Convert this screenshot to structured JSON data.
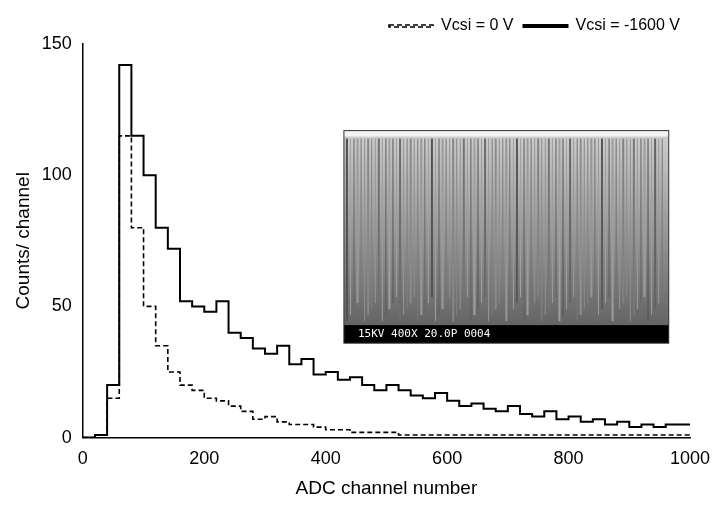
{
  "chart_data": {
    "type": "histogram",
    "x_label": "ADC channel number",
    "y_label": "Counts/ channel",
    "bins": [
      0,
      20,
      40,
      60,
      80,
      100,
      120,
      140,
      160,
      180,
      200,
      220,
      240,
      260,
      280,
      300,
      320,
      340,
      360,
      380,
      400,
      420,
      440,
      460,
      480,
      500,
      520,
      540,
      560,
      580,
      600,
      620,
      640,
      660,
      680,
      700,
      720,
      740,
      760,
      780,
      800,
      820,
      840,
      860,
      880,
      900,
      920,
      940,
      960,
      980,
      1000
    ],
    "series": [
      {
        "name": "Vcsi = 0 V",
        "color": "#000000",
        "line_style": "dashed",
        "values": [
          0,
          0,
          1,
          15,
          115,
          80,
          50,
          35,
          25,
          20,
          18,
          15,
          14,
          12,
          10,
          7,
          8,
          6,
          5,
          5,
          4,
          3,
          3,
          2,
          2,
          2,
          2,
          1,
          1,
          1,
          1,
          1,
          1,
          1,
          1,
          1,
          1,
          1,
          1,
          1,
          1,
          1,
          1,
          1,
          1,
          1,
          1,
          1,
          1,
          1
        ]
      },
      {
        "name": "Vcsi = -1600 V",
        "color": "#000000",
        "line_style": "solid",
        "values": [
          0,
          0,
          1,
          20,
          142,
          115,
          100,
          80,
          72,
          52,
          50,
          48,
          52,
          40,
          38,
          34,
          32,
          35,
          28,
          30,
          24,
          25,
          22,
          23,
          20,
          18,
          20,
          18,
          16,
          15,
          17,
          14,
          12,
          13,
          11,
          10,
          12,
          9,
          8,
          10,
          7,
          8,
          6,
          7,
          5,
          6,
          4,
          5,
          4,
          5
        ]
      }
    ],
    "xlim": [
      0,
      1000
    ],
    "xticks": [
      0,
      200,
      400,
      600,
      800,
      1000
    ],
    "ylim": [
      0,
      150
    ],
    "yticks": [
      0,
      50,
      100,
      150
    ],
    "grid": false,
    "legend": "upper right",
    "annotations": [
      "15KV 400X 20.0P 0004"
    ]
  }
}
